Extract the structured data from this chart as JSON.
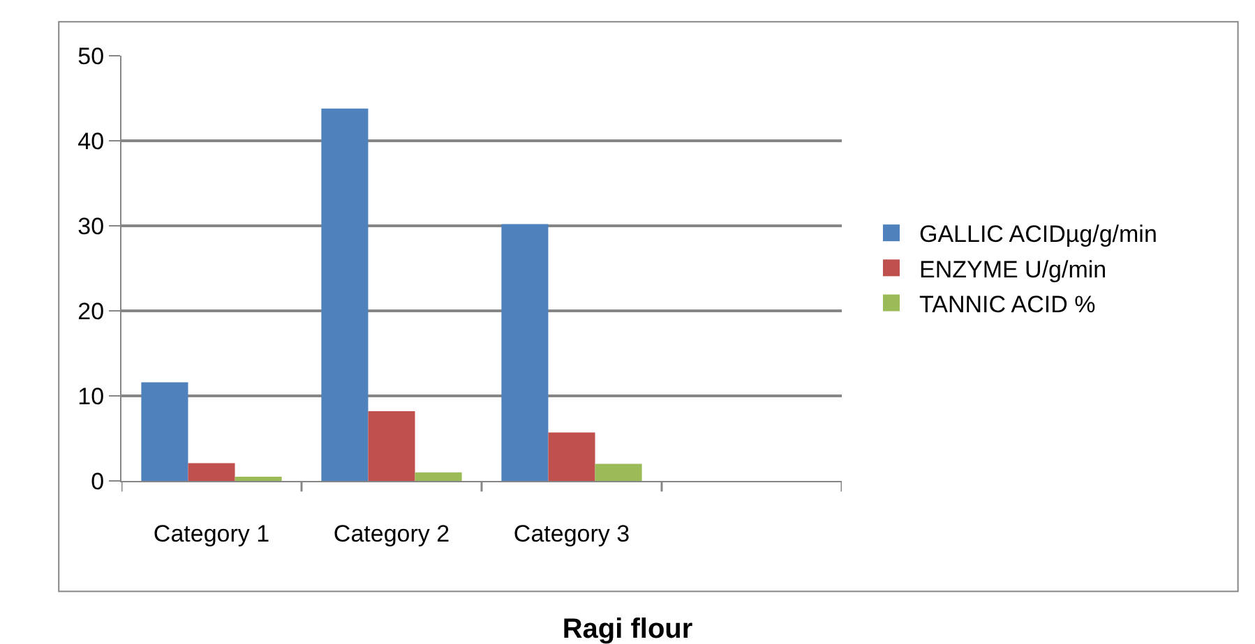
{
  "chart_data": {
    "type": "bar",
    "title": "Ragi flour",
    "categories": [
      "Category 1",
      "Category 2",
      "Category 3",
      null
    ],
    "series": [
      {
        "name": "GALLIC ACIDµg/g/min",
        "color": "#4f81bd",
        "values": [
          11.6,
          43.8,
          30.2,
          null
        ]
      },
      {
        "name": "ENZYME U/g/min",
        "color": "#c0504d",
        "values": [
          2.1,
          8.2,
          5.7,
          null
        ]
      },
      {
        "name": "TANNIC ACID %",
        "color": "#9bbb59",
        "values": [
          0.5,
          1.0,
          2.0,
          null
        ]
      }
    ],
    "ylim": [
      0,
      50
    ],
    "yticks": [
      0,
      10,
      20,
      30,
      40,
      50
    ],
    "grid": "y",
    "legend": "right"
  }
}
